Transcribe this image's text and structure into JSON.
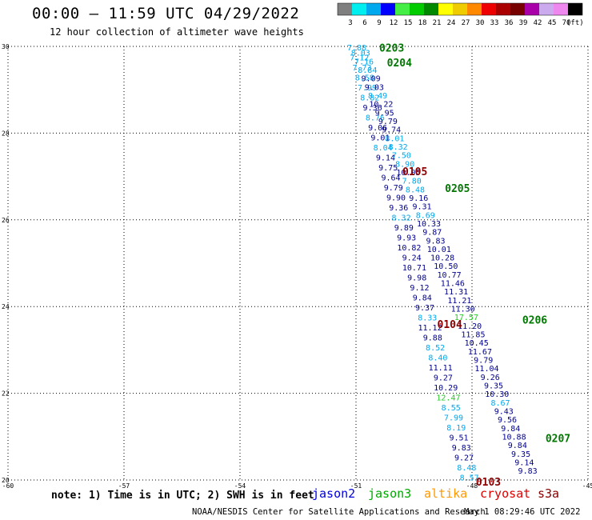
{
  "header": {
    "title": "00:00 — 11:59 UTC 04/29/2022",
    "subtitle": "12 hour collection of altimeter wave heights"
  },
  "legend": {
    "unit": "(ft)",
    "bins": [
      {
        "label": "3",
        "color": "#7f7f7f"
      },
      {
        "label": "6",
        "color": "#00eeee"
      },
      {
        "label": "9",
        "color": "#00a8ee"
      },
      {
        "label": "12",
        "color": "#0000ff"
      },
      {
        "label": "15",
        "color": "#44ee44"
      },
      {
        "label": "18",
        "color": "#00cc00"
      },
      {
        "label": "21",
        "color": "#008800"
      },
      {
        "label": "24",
        "color": "#ffff00"
      },
      {
        "label": "27",
        "color": "#eecc00"
      },
      {
        "label": "30",
        "color": "#ff8800"
      },
      {
        "label": "33",
        "color": "#ee0000"
      },
      {
        "label": "36",
        "color": "#aa0000"
      },
      {
        "label": "39",
        "color": "#770000"
      },
      {
        "label": "42",
        "color": "#aa00aa"
      },
      {
        "label": "45",
        "color": "#ccaaee"
      },
      {
        "label": "70",
        "color": "#ee88ee"
      },
      {
        "label": "",
        "color": "#000000"
      }
    ]
  },
  "chart_data": {
    "type": "scatter",
    "xlim": [
      -60,
      -45
    ],
    "ylim": [
      20,
      30
    ],
    "x_ticks": [
      "-60",
      "-57",
      "-54",
      "-51",
      "-48",
      "-45"
    ],
    "y_ticks": [
      "20",
      "22",
      "24",
      "26",
      "28",
      "30"
    ],
    "grid": true,
    "track_colors": {
      "cyan": "#00a8ee",
      "navy": "#00008b",
      "green": "#22cc22",
      "pass": "#007700",
      "red": "#880000"
    },
    "passes": [
      {
        "label": "0203",
        "lon": -50.4,
        "lat": 29.97,
        "color": "#007700"
      },
      {
        "label": "0204",
        "lon": -50.2,
        "lat": 29.63,
        "color": "#007700"
      },
      {
        "label": "0105",
        "lon": -49.8,
        "lat": 27.12,
        "color": "#880000"
      },
      {
        "label": "0205",
        "lon": -48.7,
        "lat": 26.73,
        "color": "#007700"
      },
      {
        "label": "0104",
        "lon": -48.9,
        "lat": 23.6,
        "color": "#880000"
      },
      {
        "label": "0206",
        "lon": -46.7,
        "lat": 23.7,
        "color": "#007700"
      },
      {
        "label": "0207",
        "lon": -46.1,
        "lat": 20.97,
        "color": "#007700"
      },
      {
        "label": "0103",
        "lon": -47.9,
        "lat": 19.96,
        "color": "#880000"
      }
    ],
    "tracks": [
      {
        "start": [
          -50.98,
          29.96
        ],
        "end": [
          -48.07,
          20.05
        ],
        "points": [
          {
            "v": "7.88",
            "c": "cyan"
          },
          {
            "v": "7.12",
            "c": "cyan"
          },
          {
            "v": "7.73",
            "c": "cyan"
          },
          {
            "v": "8.58",
            "c": "cyan"
          },
          {
            "v": "7.99",
            "c": "cyan"
          },
          {
            "v": "8.82",
            "c": "cyan"
          },
          {
            "v": "9.36",
            "c": "navy"
          },
          {
            "v": "8.76",
            "c": "cyan"
          },
          {
            "v": "9.06",
            "c": "navy"
          },
          {
            "v": "9.01",
            "c": "navy"
          },
          {
            "v": "8.04",
            "c": "cyan"
          },
          {
            "v": "9.14",
            "c": "navy"
          },
          {
            "v": "9.75",
            "c": "navy"
          },
          {
            "v": "9.64",
            "c": "navy"
          },
          {
            "v": "9.79",
            "c": "navy"
          },
          {
            "v": "9.90",
            "c": "navy"
          },
          {
            "v": "9.36",
            "c": "navy"
          },
          {
            "v": "8.32",
            "c": "cyan"
          },
          {
            "v": "9.89",
            "c": "navy"
          },
          {
            "v": "9.93",
            "c": "navy"
          },
          {
            "v": "10.82",
            "c": "navy"
          },
          {
            "v": "9.24",
            "c": "navy"
          },
          {
            "v": "10.71",
            "c": "navy"
          },
          {
            "v": "9.98",
            "c": "navy"
          },
          {
            "v": "9.12",
            "c": "navy"
          },
          {
            "v": "9.84",
            "c": "navy"
          },
          {
            "v": "9.37",
            "c": "navy"
          },
          {
            "v": "8.33",
            "c": "cyan"
          },
          {
            "v": "11.12",
            "c": "navy"
          },
          {
            "v": "9.88",
            "c": "navy"
          },
          {
            "v": "8.52",
            "c": "cyan"
          },
          {
            "v": "8.40",
            "c": "cyan"
          },
          {
            "v": "11.11",
            "c": "navy"
          },
          {
            "v": "9.27",
            "c": "navy"
          },
          {
            "v": "10.29",
            "c": "navy"
          },
          {
            "v": "12.47",
            "c": "green"
          },
          {
            "v": "8.55",
            "c": "cyan"
          },
          {
            "v": "7.99",
            "c": "cyan"
          },
          {
            "v": "8.19",
            "c": "cyan"
          },
          {
            "v": "9.51",
            "c": "navy"
          },
          {
            "v": "9.83",
            "c": "navy"
          },
          {
            "v": "9.27",
            "c": "navy"
          },
          {
            "v": "8.48",
            "c": "cyan"
          },
          {
            "v": "8.57",
            "c": "cyan"
          }
        ]
      },
      {
        "start": [
          -50.88,
          29.84
        ],
        "end": [
          -46.56,
          20.2
        ],
        "points": [
          {
            "v": "8.03",
            "c": "cyan"
          },
          {
            "v": "7.16",
            "c": "cyan"
          },
          {
            "v": "8.84",
            "c": "cyan"
          },
          {
            "v": "9.09",
            "c": "navy"
          },
          {
            "v": "9.03",
            "c": "navy"
          },
          {
            "v": "8.49",
            "c": "cyan"
          },
          {
            "v": "10.22",
            "c": "navy"
          },
          {
            "v": "9.95",
            "c": "navy"
          },
          {
            "v": "9.79",
            "c": "navy"
          },
          {
            "v": "9.74",
            "c": "navy"
          },
          {
            "v": "8.01",
            "c": "cyan"
          },
          {
            "v": "8.32",
            "c": "cyan"
          },
          {
            "v": "7.50",
            "c": "cyan"
          },
          {
            "v": "8.90",
            "c": "cyan"
          },
          {
            "v": "10.05",
            "c": "navy"
          },
          {
            "v": "7.80",
            "c": "cyan"
          },
          {
            "v": "8.48",
            "c": "cyan"
          },
          {
            "v": "9.16",
            "c": "navy"
          },
          {
            "v": "9.31",
            "c": "navy"
          },
          {
            "v": "8.69",
            "c": "cyan"
          },
          {
            "v": "10.33",
            "c": "navy"
          },
          {
            "v": "9.87",
            "c": "navy"
          },
          {
            "v": "9.83",
            "c": "navy"
          },
          {
            "v": "10.01",
            "c": "navy"
          },
          {
            "v": "10.28",
            "c": "navy"
          },
          {
            "v": "10.50",
            "c": "navy"
          },
          {
            "v": "10.77",
            "c": "navy"
          },
          {
            "v": "11.46",
            "c": "navy"
          },
          {
            "v": "11.31",
            "c": "navy"
          },
          {
            "v": "11.21",
            "c": "navy"
          },
          {
            "v": "11.30",
            "c": "navy"
          },
          {
            "v": "17.57",
            "c": "green"
          },
          {
            "v": "11.20",
            "c": "navy"
          },
          {
            "v": "11.85",
            "c": "navy"
          },
          {
            "v": "10.45",
            "c": "navy"
          },
          {
            "v": "11.67",
            "c": "navy"
          },
          {
            "v": "9.79",
            "c": "navy"
          },
          {
            "v": "11.04",
            "c": "navy"
          },
          {
            "v": "9.26",
            "c": "navy"
          },
          {
            "v": "9.35",
            "c": "navy"
          },
          {
            "v": "10.30",
            "c": "navy"
          },
          {
            "v": "8.67",
            "c": "cyan"
          },
          {
            "v": "9.43",
            "c": "navy"
          },
          {
            "v": "9.56",
            "c": "navy"
          },
          {
            "v": "9.84",
            "c": "navy"
          },
          {
            "v": "10.88",
            "c": "navy"
          },
          {
            "v": "9.84",
            "c": "navy"
          },
          {
            "v": "9.35",
            "c": "navy"
          },
          {
            "v": "9.14",
            "c": "navy"
          },
          {
            "v": "9.83",
            "c": "navy"
          }
        ]
      }
    ]
  },
  "footer": {
    "note": "note: 1) Time is in UTC; 2) SWH is in feet",
    "satellites": [
      {
        "name": "jason2",
        "color": "#0000dd"
      },
      {
        "name": "jason3",
        "color": "#00aa00"
      },
      {
        "name": "altika",
        "color": "#ff9900"
      },
      {
        "name": "cryosat",
        "color": "#dd0000"
      },
      {
        "name": "s3a",
        "color": "#880000"
      }
    ],
    "credit": "NOAA/NESDIS Center for Satellite Applications and Research",
    "timestamp": "May  1 08:29:46 UTC 2022"
  }
}
